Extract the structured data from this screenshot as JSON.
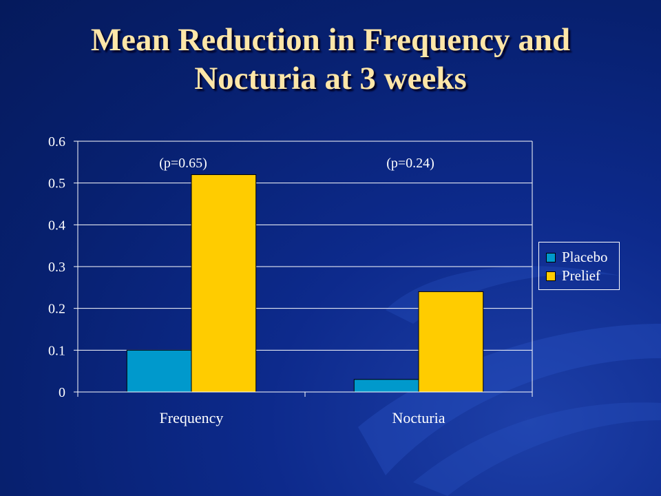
{
  "title_lines": [
    "Mean Reduction in Frequency and",
    "Nocturia at 3 weeks"
  ],
  "colors": {
    "placebo": "#0099cc",
    "prelief": "#ffcc00",
    "title": "#fde6a8",
    "axis": "#ffffff"
  },
  "chart_data": {
    "type": "bar",
    "categories": [
      "Frequency",
      "Nocturia"
    ],
    "series": [
      {
        "name": "Placebo",
        "values": [
          0.1,
          0.03
        ]
      },
      {
        "name": "Prelief",
        "values": [
          0.52,
          0.24
        ]
      }
    ],
    "ylim": [
      0,
      0.6
    ],
    "y_ticks": [
      "0",
      "0.1",
      "0.2",
      "0.3",
      "0.4",
      "0.5",
      "0.6"
    ],
    "annotations": [
      "(p=0.65)",
      "(p=0.24)"
    ],
    "grid": true,
    "legend_position": "right"
  }
}
